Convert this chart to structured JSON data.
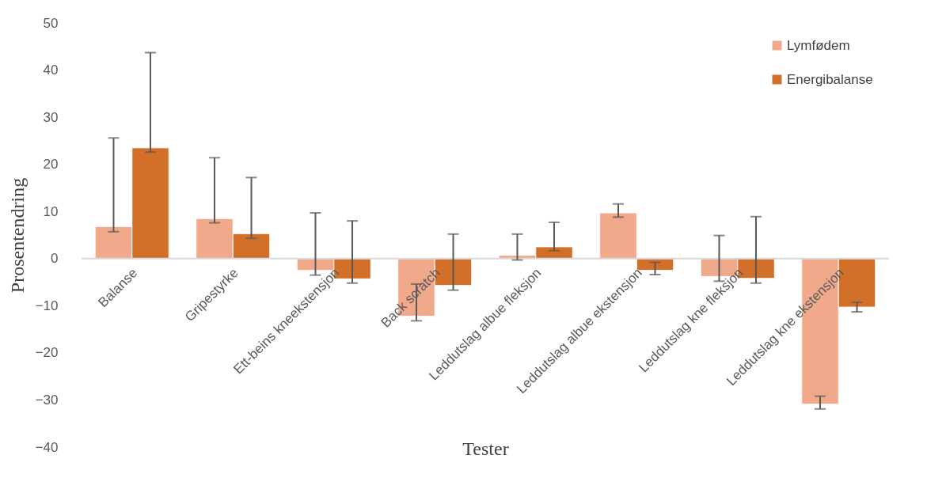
{
  "chart_data": {
    "type": "bar",
    "xlabel": "Tester",
    "ylabel": "Prosentendring",
    "categories": [
      "Balanse",
      "Gripestyrke",
      "Ett-beins kneekstensjon",
      "Back scratch",
      "Leddutslag albue fleksjon",
      "Leddutslag albue ekstensjon",
      "Leddutslag kne fleksjon",
      "Leddutslag kne ekstensjon"
    ],
    "series": [
      {
        "name": "Lymfødem",
        "color": "#f0a98a",
        "values": [
          6.8,
          8.5,
          -2.5,
          -12.2,
          0.7,
          9.7,
          -3.8,
          -30.9
        ],
        "errors": [
          [
            5.7,
            25.6
          ],
          [
            7.6,
            21.4
          ],
          [
            -3.5,
            9.7
          ],
          [
            -13.2,
            -5.4
          ],
          [
            -0.3,
            5.2
          ],
          [
            8.8,
            11.6
          ],
          [
            -4.8,
            4.9
          ],
          [
            -31.9,
            -29.2
          ]
        ]
      },
      {
        "name": "Energibalanse",
        "color": "#d2702a",
        "values": [
          23.5,
          5.3,
          -4.3,
          -5.7,
          2.5,
          -2.5,
          -4.2,
          -10.3
        ],
        "errors": [
          [
            22.6,
            43.7
          ],
          [
            4.3,
            17.2
          ],
          [
            -5.2,
            8.0
          ],
          [
            -6.7,
            5.2
          ],
          [
            1.7,
            7.7
          ],
          [
            -3.4,
            -0.8
          ],
          [
            -5.2,
            8.9
          ],
          [
            -11.3,
            -9.3
          ]
        ]
      }
    ],
    "ylim": [
      -40,
      50
    ],
    "yticks": [
      -40,
      -30,
      -20,
      -10,
      0,
      10,
      20,
      30,
      40,
      50
    ],
    "legend": "top right",
    "grid": false
  }
}
